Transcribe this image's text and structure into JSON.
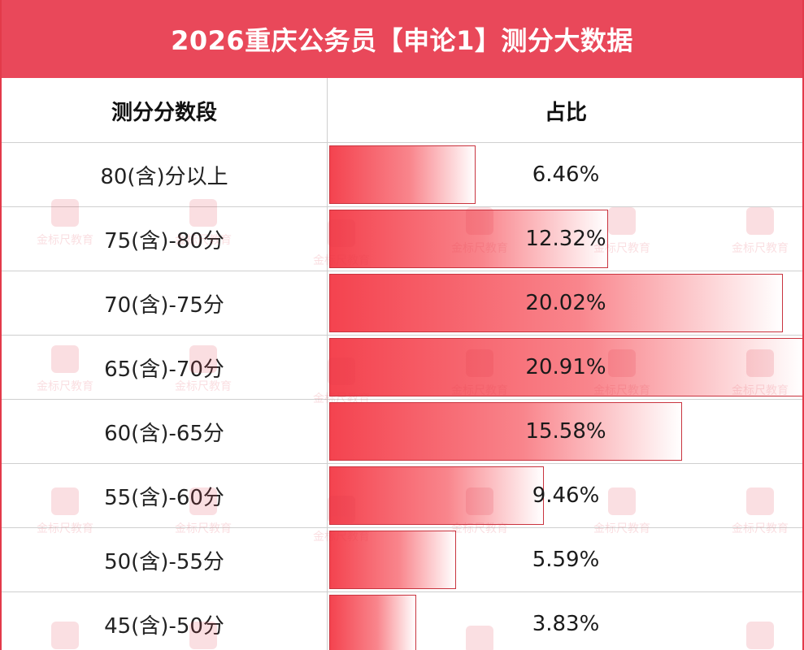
{
  "title": "2026重庆公务员【申论1】测分大数据",
  "table": {
    "headers": {
      "range": "测分分数段",
      "ratio": "占比"
    }
  },
  "watermark": "金标尺教育",
  "colors": {
    "title_bg": "#e9485a",
    "bar_start": "#f4434f",
    "bar_end": "#ffffff",
    "border": "#e33a4a"
  },
  "chart_data": {
    "type": "bar",
    "orientation": "horizontal",
    "title": "2026重庆公务员【申论1】测分大数据",
    "xlabel": "占比",
    "ylabel": "测分分数段",
    "unit": "%",
    "categories": [
      "80(含)分以上",
      "75(含)-80分",
      "70(含)-75分",
      "65(含)-70分",
      "60(含)-65分",
      "55(含)-60分",
      "50(含)-55分",
      "45(含)-50分"
    ],
    "values": [
      6.46,
      12.32,
      20.02,
      20.91,
      15.58,
      9.46,
      5.59,
      3.83
    ],
    "labels": [
      "6.46%",
      "12.32%",
      "20.02%",
      "20.91%",
      "15.58%",
      "9.46%",
      "5.59%",
      "3.83%"
    ],
    "xlim": [
      0,
      20.91
    ]
  }
}
